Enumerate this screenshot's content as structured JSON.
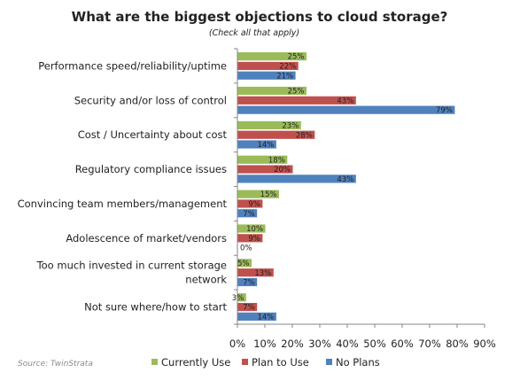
{
  "chart_data": {
    "type": "bar",
    "orientation": "horizontal",
    "title": "What are the biggest objections to cloud storage?",
    "subtitle": "(Check all that apply)",
    "categories": [
      [
        "Performance speed/reliability/uptime"
      ],
      [
        "Security and/or loss of control"
      ],
      [
        "Cost / Uncertainty about cost"
      ],
      [
        "Regulatory compliance issues"
      ],
      [
        "Convincing team members/management"
      ],
      [
        "Adolescence of market/vendors"
      ],
      [
        "Too much invested in current storage",
        "network"
      ],
      [
        "Not sure where/how to start"
      ]
    ],
    "series": [
      {
        "name": "Currently Use",
        "color": "#9bbb59",
        "values": [
          25,
          25,
          23,
          18,
          15,
          10,
          5,
          3
        ]
      },
      {
        "name": "Plan to Use",
        "color": "#c0504d",
        "values": [
          22,
          43,
          28,
          20,
          9,
          9,
          13,
          7
        ]
      },
      {
        "name": "No Plans",
        "color": "#4f81bd",
        "values": [
          21,
          79,
          14,
          43,
          7,
          0,
          7,
          14
        ]
      }
    ],
    "xlim": [
      0,
      90
    ],
    "xticks": [
      "0%",
      "10%",
      "20%",
      "30%",
      "40%",
      "50%",
      "60%",
      "70%",
      "80%",
      "90%"
    ],
    "grid": false,
    "legend": "bottom",
    "source": "Source: TwinStrata"
  }
}
